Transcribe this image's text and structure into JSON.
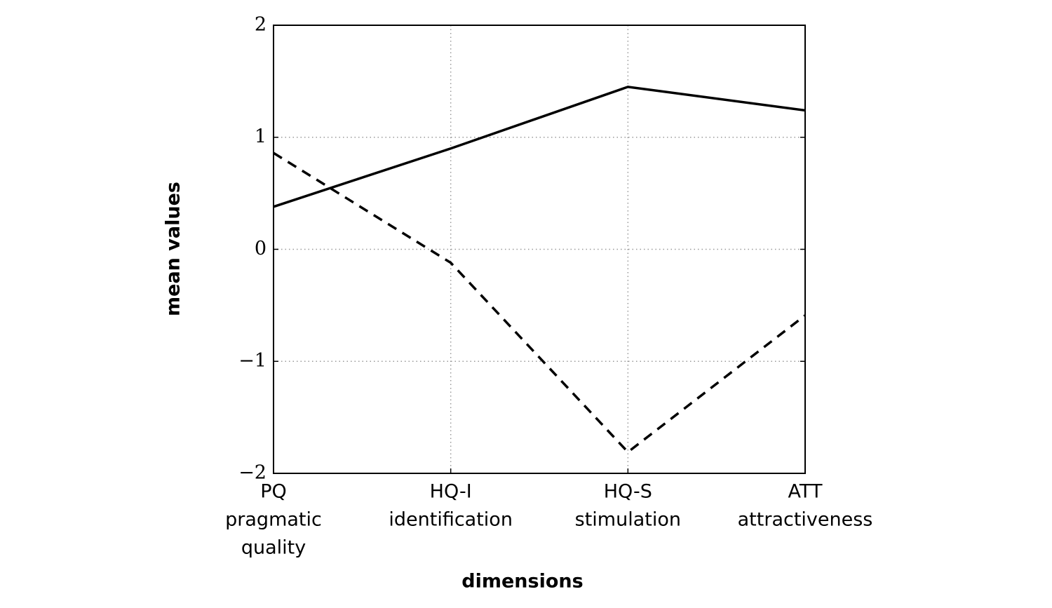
{
  "chart_data": {
    "type": "line",
    "x_label": "dimensions",
    "y_label": "mean values",
    "categories": [
      [
        "PQ",
        "pragmatic",
        "quality"
      ],
      [
        "HQ-I",
        "identification"
      ],
      [
        "HQ-S",
        "stimulation"
      ],
      [
        "ATT",
        "attractiveness"
      ]
    ],
    "series": [
      {
        "color": "#000000",
        "dash": "solid",
        "values": [
          0.38,
          0.9,
          1.45,
          1.24
        ]
      },
      {
        "color": "#000000",
        "dash": "dashed",
        "values": [
          0.86,
          -0.12,
          -1.81,
          -0.59
        ]
      }
    ],
    "ylim": [
      -2,
      2
    ],
    "yticks": [
      {
        "value": -2,
        "label": "−2"
      },
      {
        "value": -1,
        "label": "−1"
      },
      0,
      1,
      2
    ],
    "grid": true
  }
}
